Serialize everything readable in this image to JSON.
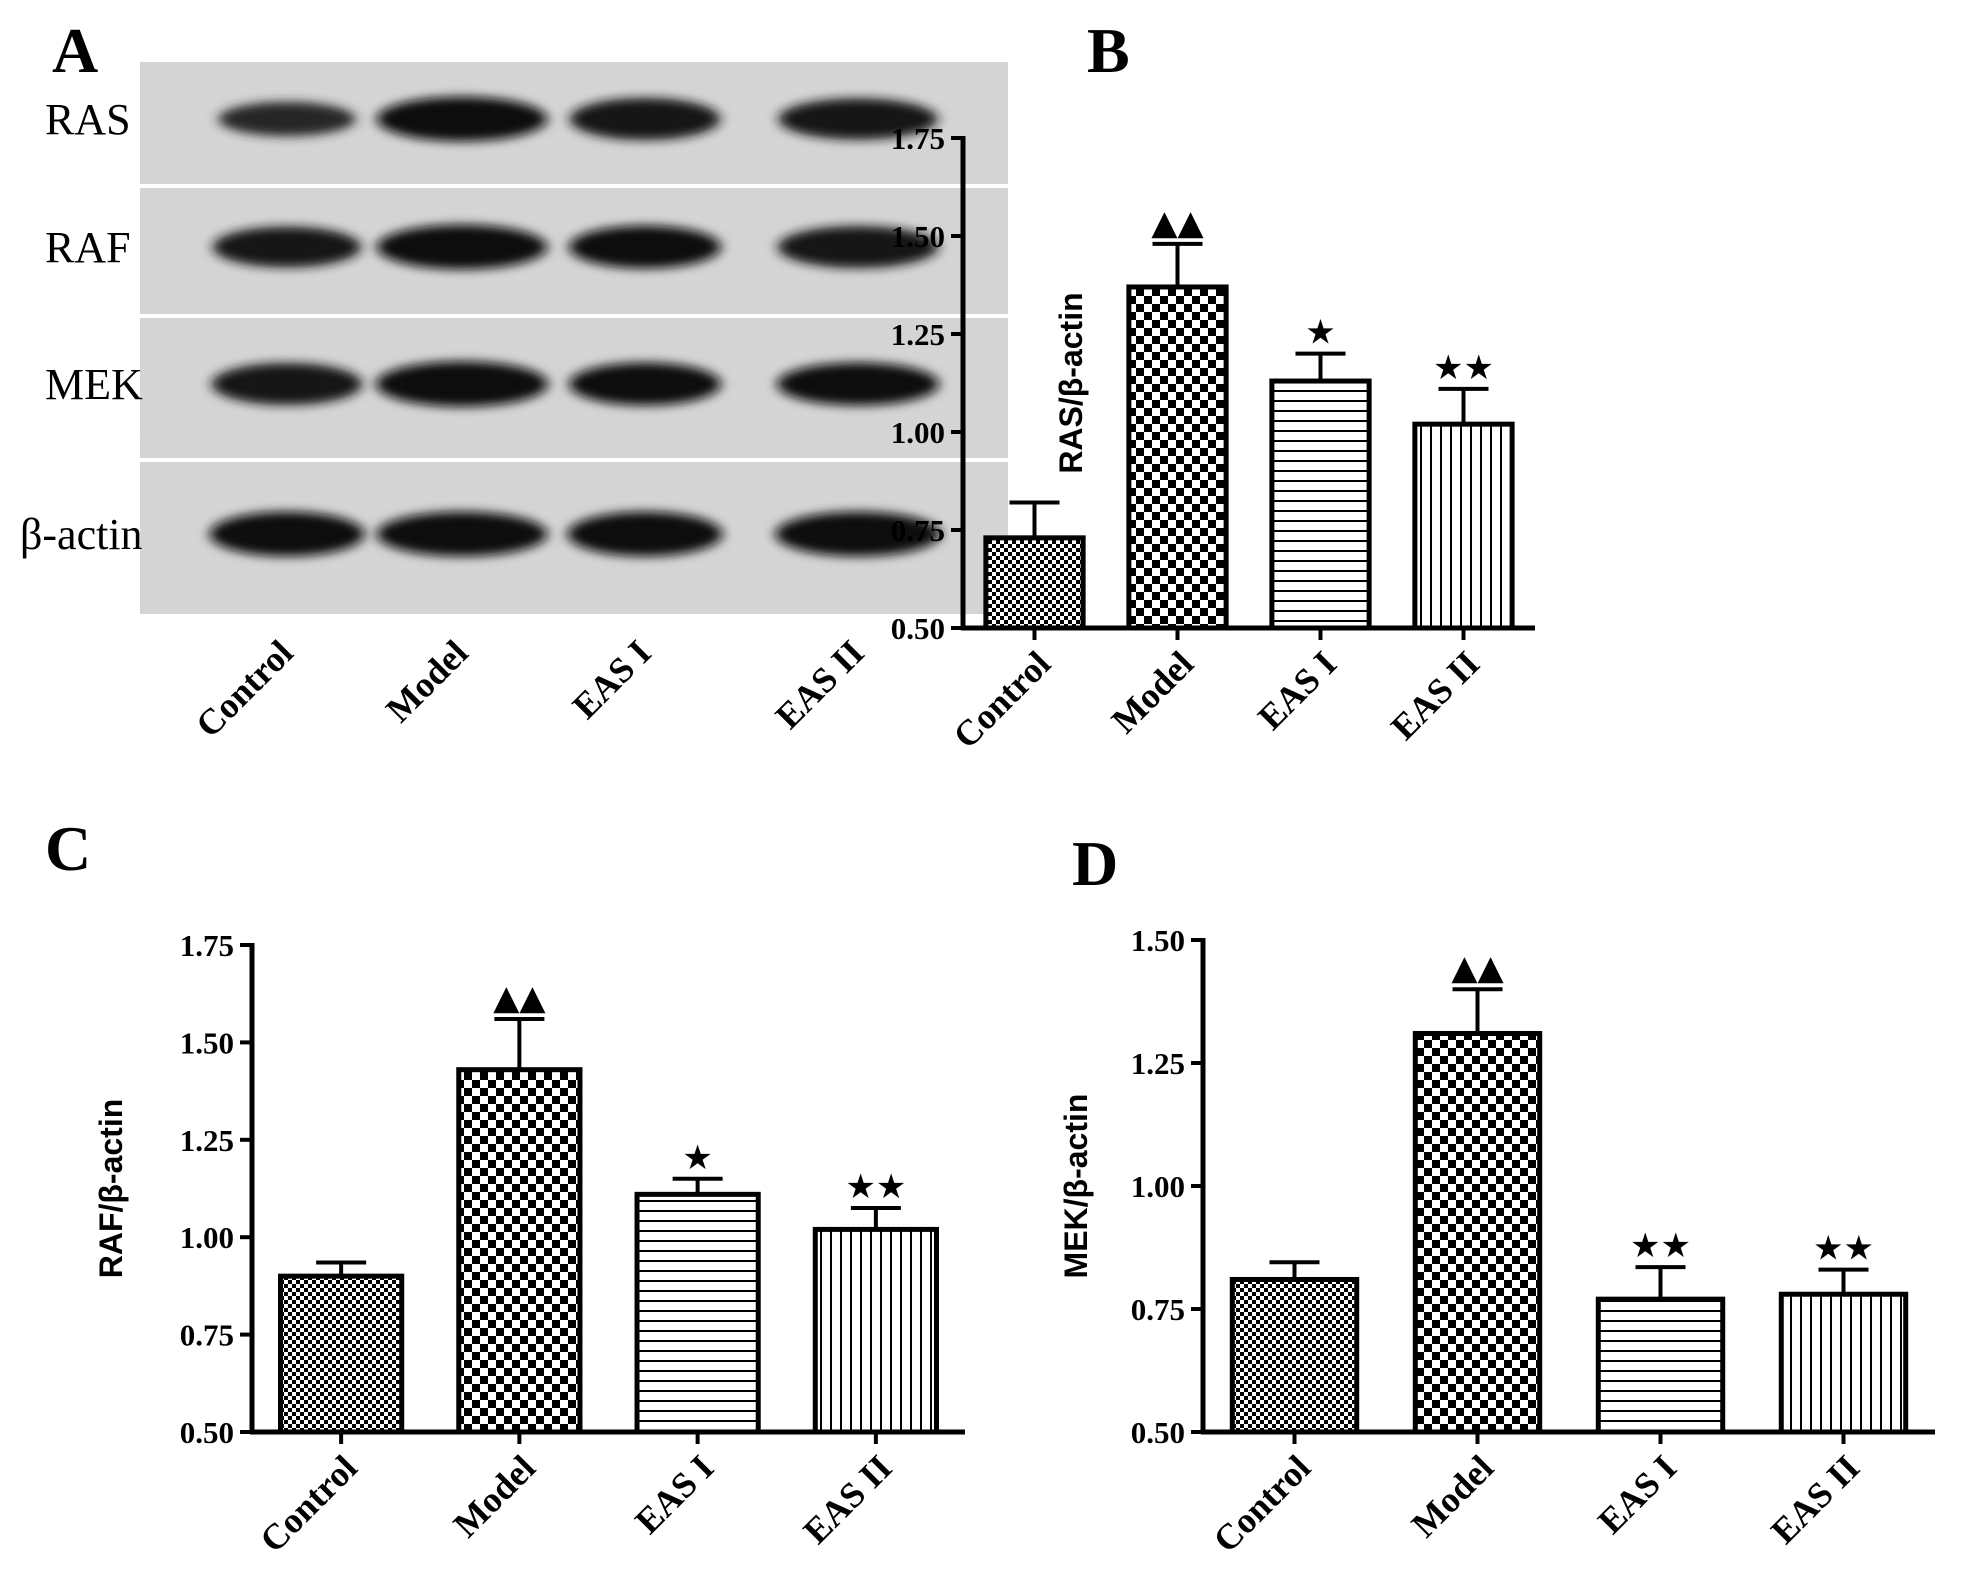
{
  "figure": {
    "panel_A": {
      "letter": "A",
      "proteins": [
        "RAS",
        "RAF",
        "MEK",
        "β-actin"
      ],
      "lanes": [
        "Control",
        "Model",
        "EAS I",
        "EAS II"
      ],
      "band_intensity": {
        "RAS": [
          0.55,
          0.95,
          0.85,
          0.82
        ],
        "RAF": [
          0.8,
          0.95,
          0.88,
          0.85
        ],
        "MEK": [
          0.85,
          0.98,
          0.88,
          0.88
        ],
        "β-actin": [
          0.95,
          0.95,
          0.95,
          0.95
        ]
      }
    }
  },
  "chart_data": [
    {
      "panel": "B",
      "type": "bar",
      "categories": [
        "Control",
        "Model",
        "EAS I",
        "EAS II"
      ],
      "values": [
        0.73,
        1.37,
        1.13,
        1.02
      ],
      "errors": [
        0.09,
        0.11,
        0.07,
        0.09
      ],
      "markers": [
        "",
        "▲▲",
        "★",
        "★★"
      ],
      "ylabel": "RAS/β-actin",
      "ylim": [
        0.5,
        1.75
      ],
      "yticks": [
        "0.50",
        "0.75",
        "1.00",
        "1.25",
        "1.50",
        "1.75"
      ],
      "patterns": [
        "fine-check",
        "coarse-check",
        "horizontal",
        "vertical"
      ]
    },
    {
      "panel": "C",
      "type": "bar",
      "categories": [
        "Control",
        "Model",
        "EAS I",
        "EAS II"
      ],
      "values": [
        0.9,
        1.43,
        1.11,
        1.02
      ],
      "errors": [
        0.035,
        0.13,
        0.04,
        0.055
      ],
      "markers": [
        "",
        "▲▲",
        "★",
        "★★"
      ],
      "ylabel": "RAF/β-actin",
      "ylim": [
        0.5,
        1.75
      ],
      "yticks": [
        "0.50",
        "0.75",
        "1.00",
        "1.25",
        "1.50",
        "1.75"
      ],
      "patterns": [
        "fine-check",
        "coarse-check",
        "horizontal",
        "vertical"
      ]
    },
    {
      "panel": "D",
      "type": "bar",
      "categories": [
        "Control",
        "Model",
        "EAS I",
        "EAS II"
      ],
      "values": [
        0.81,
        1.31,
        0.77,
        0.78
      ],
      "errors": [
        0.035,
        0.09,
        0.065,
        0.05
      ],
      "markers": [
        "",
        "▲▲",
        "★★",
        "★★"
      ],
      "ylabel": "MEK/β-actin",
      "ylim": [
        0.5,
        1.5
      ],
      "yticks": [
        "0.50",
        "0.75",
        "1.00",
        "1.25",
        "1.50"
      ],
      "patterns": [
        "fine-check",
        "coarse-check",
        "horizontal",
        "vertical"
      ]
    }
  ]
}
